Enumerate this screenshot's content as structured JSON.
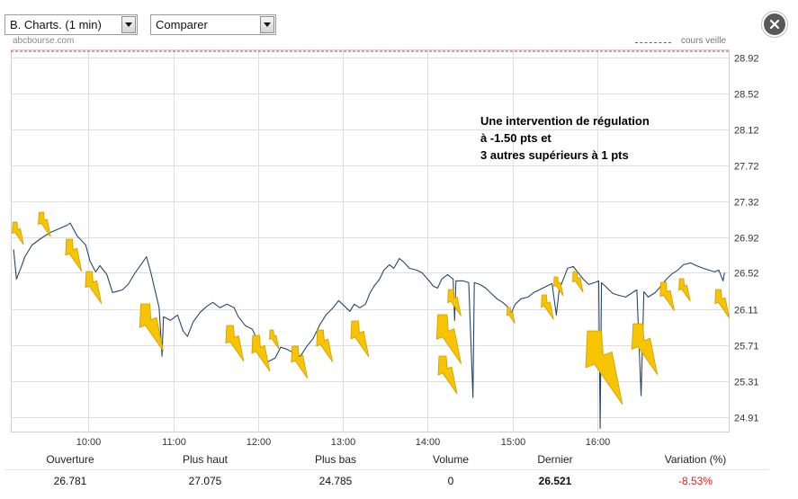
{
  "toolbar": {
    "chart_select": "B. Charts. (1 min)",
    "compare_select": "Comparer"
  },
  "source_label": "abcbourse.com",
  "icons": {
    "close": "close-icon",
    "dropdown": "caret-down-icon",
    "annotation_marker": "lightning-icon"
  },
  "colors": {
    "price_line": "#27476a",
    "reference_line": "#e2302f",
    "grid": "#dedede",
    "annotation_marker": "#f6c400",
    "negative": "#e02020"
  },
  "chart_data": {
    "type": "line",
    "x": [
      "09:07",
      "09:09",
      "09:12",
      "09:15",
      "09:20",
      "09:26",
      "09:33",
      "09:39",
      "09:45",
      "09:47",
      "09:52",
      "09:58",
      "10:01",
      "10:05",
      "10:08",
      "10:13",
      "10:17",
      "10:24",
      "10:28",
      "10:33",
      "10:38",
      "10:41",
      "10:44",
      "10:47",
      "10:50",
      "10:52",
      "10:53",
      "10:58",
      "11:03",
      "11:07",
      "11:10",
      "11:14",
      "11:19",
      "11:24",
      "11:28",
      "11:33",
      "11:38",
      "11:43",
      "11:46",
      "11:51",
      "11:56",
      "12:00",
      "12:03",
      "12:07",
      "12:12",
      "12:16",
      "12:20",
      "12:25",
      "12:30",
      "12:34",
      "12:39",
      "12:44",
      "12:48",
      "12:53",
      "12:57",
      "13:01",
      "13:05",
      "13:08",
      "13:12",
      "13:16",
      "13:19",
      "13:22",
      "13:26",
      "13:29",
      "13:33",
      "13:36",
      "13:40",
      "13:43",
      "13:47",
      "13:52",
      "13:56",
      "14:01",
      "14:04",
      "14:07",
      "14:10",
      "14:14",
      "14:18",
      "14:19",
      "14:20",
      "14:25",
      "14:29",
      "14:32",
      "14:33",
      "14:37",
      "14:41",
      "14:45",
      "14:49",
      "14:53",
      "14:56",
      "14:59",
      "15:02",
      "15:06",
      "15:11",
      "15:15",
      "15:19",
      "15:24",
      "15:28",
      "15:31",
      "15:33",
      "15:36",
      "15:39",
      "15:43",
      "15:46",
      "15:50",
      "15:54",
      "15:58",
      "16:01",
      "16:02",
      "16:03",
      "16:07",
      "16:11",
      "16:15",
      "16:20",
      "16:24",
      "16:28",
      "16:31",
      "16:33",
      "16:36",
      "16:41",
      "16:45",
      "16:49",
      "16:53",
      "16:57",
      "17:01",
      "17:06",
      "17:10",
      "17:15",
      "17:19",
      "17:23",
      "17:26",
      "17:29",
      "17:30"
    ],
    "series": [
      {
        "values": [
          26.781,
          26.45,
          26.57,
          26.7,
          26.83,
          26.9,
          26.97,
          27.01,
          27.05,
          27.075,
          26.93,
          26.83,
          26.65,
          26.53,
          26.6,
          26.5,
          26.3,
          26.33,
          26.39,
          26.52,
          26.63,
          26.7,
          26.53,
          26.33,
          26.13,
          25.59,
          26.03,
          25.99,
          26.05,
          25.87,
          25.81,
          25.97,
          26.08,
          26.15,
          26.19,
          26.13,
          26.17,
          26.13,
          26.03,
          25.93,
          25.89,
          25.75,
          25.59,
          25.53,
          25.57,
          25.69,
          25.67,
          25.63,
          25.59,
          25.69,
          25.79,
          25.95,
          26.05,
          26.13,
          26.21,
          26.15,
          26.09,
          26.17,
          26.13,
          26.17,
          26.29,
          26.37,
          26.45,
          26.55,
          26.61,
          26.57,
          26.68,
          26.64,
          26.57,
          26.55,
          26.52,
          26.43,
          26.37,
          26.35,
          26.45,
          26.5,
          26.45,
          25.99,
          26.43,
          26.43,
          26.41,
          25.13,
          26.41,
          26.39,
          26.35,
          26.29,
          26.23,
          26.19,
          26.15,
          26.07,
          26.17,
          26.23,
          26.25,
          26.3,
          26.33,
          26.37,
          26.4,
          26.05,
          26.33,
          26.45,
          26.57,
          26.59,
          26.53,
          26.45,
          26.39,
          26.41,
          26.43,
          24.785,
          26.41,
          26.35,
          26.29,
          26.27,
          26.25,
          26.29,
          26.33,
          25.15,
          26.31,
          26.25,
          26.3,
          26.37,
          26.45,
          26.51,
          26.55,
          26.61,
          26.63,
          26.6,
          26.57,
          26.55,
          26.53,
          26.55,
          26.43,
          26.521
        ]
      }
    ],
    "xticks": [
      "10:00",
      "11:00",
      "12:00",
      "13:00",
      "14:00",
      "15:00",
      "16:00"
    ],
    "yticks": [
      28.92,
      28.52,
      28.12,
      27.72,
      27.32,
      26.92,
      26.52,
      26.11,
      25.71,
      25.31,
      24.91
    ],
    "xlim": [
      "09:05",
      "17:33"
    ],
    "ylim": [
      24.75,
      29.01
    ],
    "grid": true,
    "legend_position": "top-right",
    "reference_line": {
      "label": "cours veille",
      "value": 28.99
    },
    "annotation": {
      "lines": [
        "Une intervention de régulation",
        "à -1.50 pts et",
        "3 autres supérieurs à 1 pts"
      ]
    }
  },
  "summary": [
    {
      "label": "Ouverture",
      "value": "26.781"
    },
    {
      "label": "Plus haut",
      "value": "27.075"
    },
    {
      "label": "Plus bas",
      "value": "24.785"
    },
    {
      "label": "Volume",
      "value": "0"
    },
    {
      "label": "Dernier",
      "value": "26.521"
    },
    {
      "label": "Variation (%)",
      "value": "-8.53%"
    }
  ]
}
